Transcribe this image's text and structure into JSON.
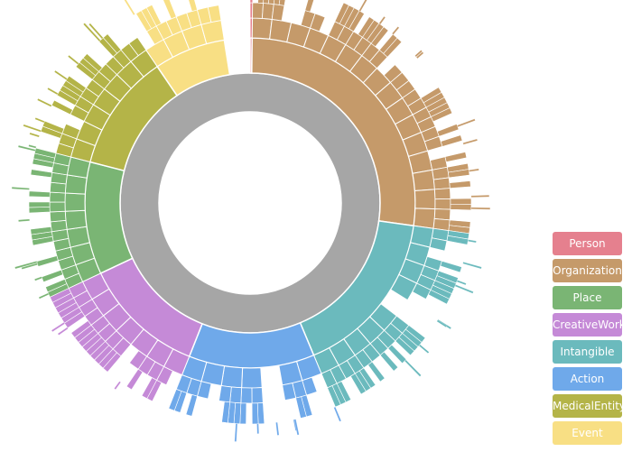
{
  "chart_data": {
    "type": "sunburst",
    "center_color": "#a6a6a6",
    "categories": [
      {
        "name": "Person",
        "color": "#e5808e",
        "start": 0.0,
        "end": 0.002
      },
      {
        "name": "Organization",
        "color": "#c59a6a",
        "start": 0.002,
        "end": 0.272
      },
      {
        "name": "Intangible",
        "color": "#6bbabd",
        "start": 0.272,
        "end": 0.437
      },
      {
        "name": "Action",
        "color": "#6fa9ea",
        "start": 0.437,
        "end": 0.56
      },
      {
        "name": "CreativeWork",
        "color": "#c58ad7",
        "start": 0.56,
        "end": 0.68
      },
      {
        "name": "Place",
        "color": "#7ab574",
        "start": 0.68,
        "end": 0.79
      },
      {
        "name": "MedicalEntity",
        "color": "#b4b448",
        "start": 0.79,
        "end": 0.905
      },
      {
        "name": "Event",
        "color": "#f8df84",
        "start": 0.905,
        "end": 0.975
      }
    ],
    "legend": {
      "position": "right",
      "items": [
        {
          "label": "Person",
          "color": "#e5808e"
        },
        {
          "label": "Organization",
          "color": "#c59a6a"
        },
        {
          "label": "Place",
          "color": "#7ab574"
        },
        {
          "label": "CreativeWork",
          "color": "#c58ad7"
        },
        {
          "label": "Intangible",
          "color": "#6bbabd"
        },
        {
          "label": "Action",
          "color": "#6fa9ea"
        },
        {
          "label": "MedicalEntity",
          "color": "#b4b448"
        },
        {
          "label": "Event",
          "color": "#f8df84"
        }
      ]
    }
  }
}
